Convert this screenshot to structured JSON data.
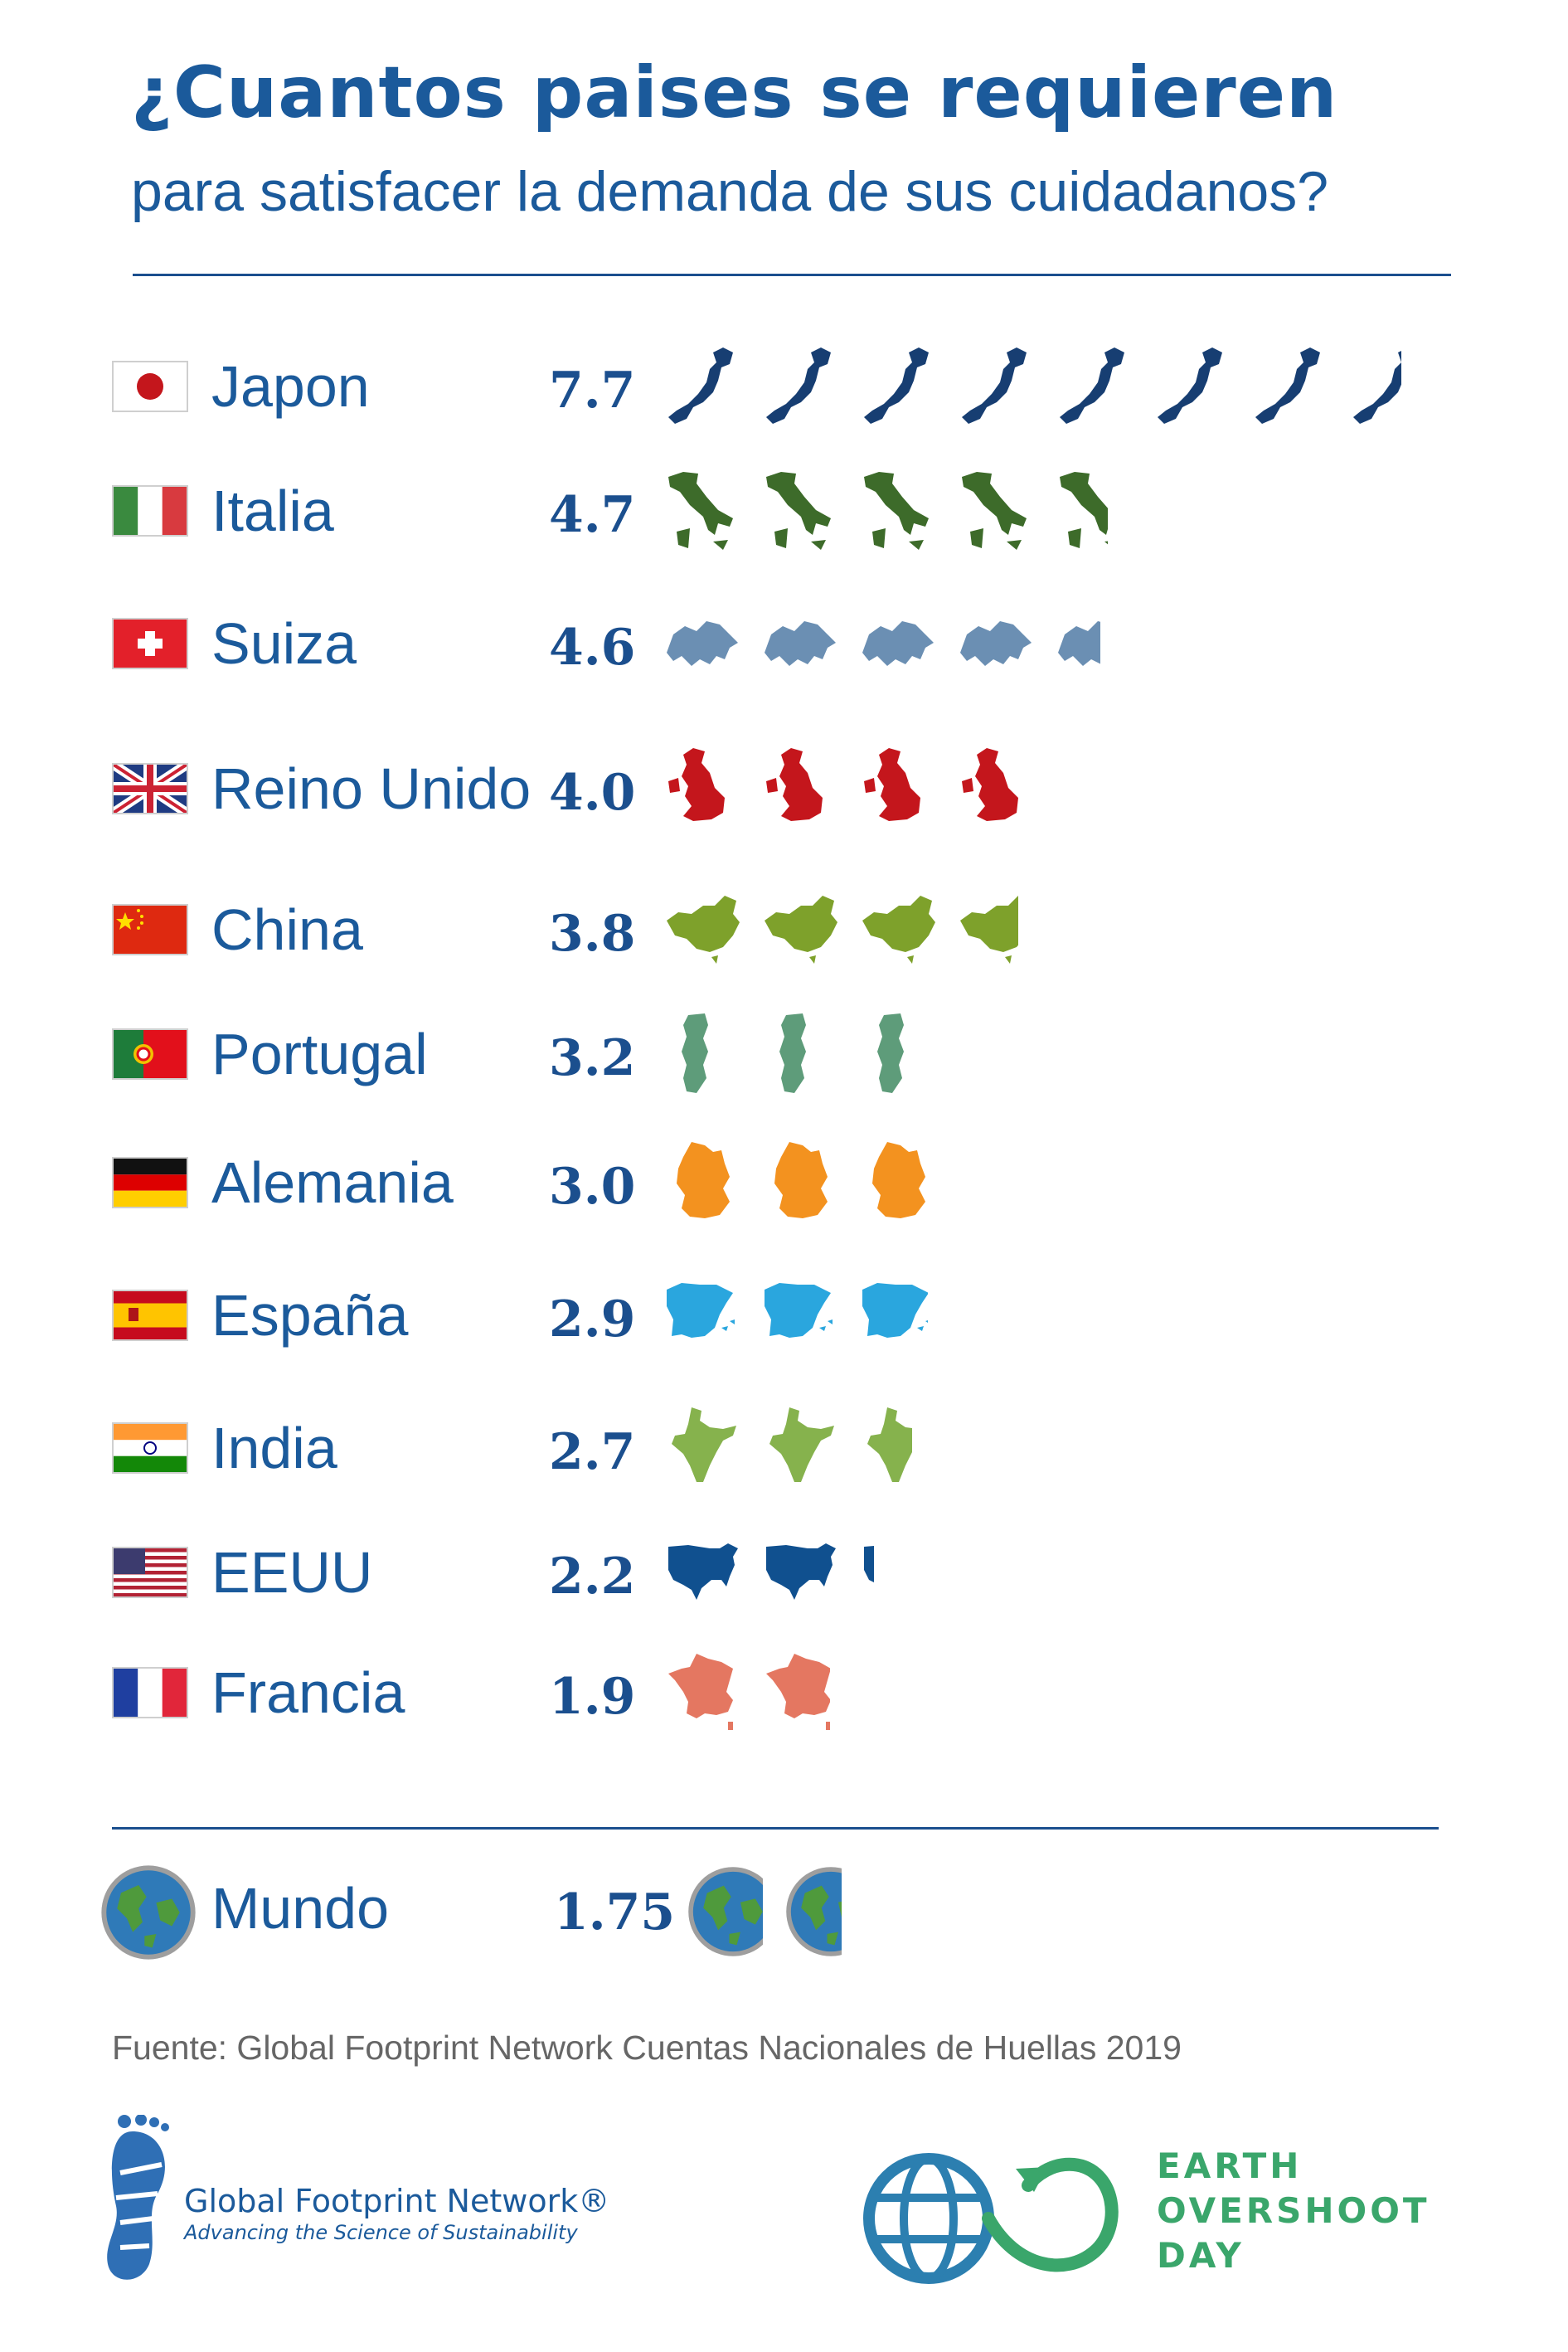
{
  "header": {
    "title": "¿Cuantos paises se requieren",
    "subtitle": "para satisfacer la demanda de sus cuidadanos?"
  },
  "chart_data": {
    "type": "bar",
    "title": "¿Cuantos paises se requieren para satisfacer la demanda de sus cuidadanos?",
    "xlabel": "",
    "ylabel": "",
    "categories": [
      "Japon",
      "Italia",
      "Suiza",
      "Reino Unido",
      "China",
      "Portugal",
      "Alemania",
      "España",
      "India",
      "EEUU",
      "Francia",
      "Mundo"
    ],
    "values": [
      7.7,
      4.7,
      4.6,
      4.0,
      3.8,
      3.2,
      3.0,
      2.9,
      2.7,
      2.2,
      1.9,
      1.75
    ],
    "value_labels": [
      "7.7",
      "4.7",
      "4.6",
      "4.0",
      "3.8",
      "3.2",
      "3.0",
      "2.9",
      "2.7",
      "2.2",
      "1.9",
      "1.75"
    ],
    "colors": [
      "#173e72",
      "#3d6b2a",
      "#6b8fb3",
      "#c4161c",
      "#7ea12b",
      "#5e9c7a",
      "#f3921f",
      "#2aa6de",
      "#86b24d",
      "#10508f",
      "#e47761",
      "#2f7ab8"
    ],
    "icons": [
      "japan-icon",
      "italy-icon",
      "switzerland-icon",
      "uk-icon",
      "china-icon",
      "portugal-icon",
      "germany-icon",
      "spain-icon",
      "india-icon",
      "usa-icon",
      "france-icon",
      "globe-icon"
    ]
  },
  "source": "Fuente: Global Footprint Network Cuentas Nacionales de Huellas 2019",
  "logos": {
    "gfn_name": "Global Footprint Network®",
    "gfn_tagline": "Advancing the Science of Sustainability",
    "eod_line1": "EARTH",
    "eod_line2": "OVERSHOOT",
    "eod_line3": "DAY"
  }
}
